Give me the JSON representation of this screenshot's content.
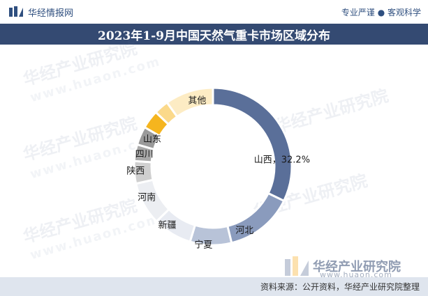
{
  "header": {
    "brand": "华经情报网",
    "tagline": "专业严谨 ● 客观科学"
  },
  "title": "2023年1-9月中国天然气重卡市场区域分布",
  "watermark": {
    "text": "华经产业研究院",
    "url": "www.huaon.com"
  },
  "footer": {
    "source": "资料来源：公开资料，华经产业研究院整理",
    "brand": "华经产业研究院",
    "url": "www.huaon.com"
  },
  "chart_data": {
    "type": "pie",
    "donut": true,
    "categories": [
      "山西",
      "河北",
      "宁夏",
      "新疆",
      "河南",
      "陕西",
      "四川",
      "山东",
      "",
      "",
      "其他"
    ],
    "display_labels": [
      "山西，32.2%",
      "河北",
      "宁夏",
      "新疆",
      "河南",
      "陕西",
      "四川",
      "山东",
      "",
      "",
      "其他"
    ],
    "values": [
      32.2,
      14.0,
      8.5,
      8.0,
      8.8,
      4.6,
      3.4,
      3.8,
      3.8,
      3.0,
      9.9
    ],
    "colors": [
      "#5a6f99",
      "#8a9bbd",
      "#b8c3d8",
      "#e8ebf2",
      "#eceef2",
      "#cfcfcf",
      "#a9a9a9",
      "#9a9a9a",
      "#f5b51e",
      "#fbd98a",
      "#fdecc4"
    ],
    "legend": "none"
  }
}
